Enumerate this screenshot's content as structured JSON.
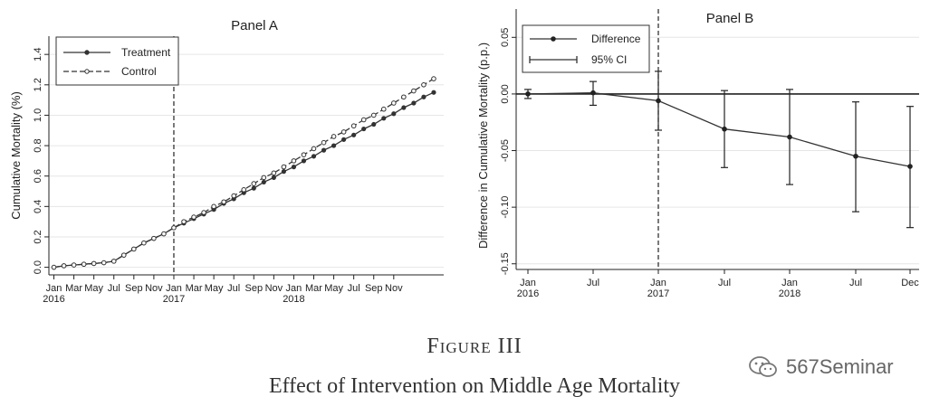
{
  "chart_data": [
    {
      "type": "line",
      "title": "Panel A",
      "ylabel": "Cumulative Mortality (%)",
      "xlabel": "",
      "ylim": [
        -0.05,
        1.52
      ],
      "yticks": [
        "0.0",
        "0.2",
        "0.4",
        "0.6",
        "0.8",
        "1.0",
        "1.2",
        "1.4"
      ],
      "x_tick_labels": [
        "Jan\n2016",
        "Mar",
        "May",
        "Jul",
        "Sep",
        "Nov",
        "Jan\n2017",
        "Mar",
        "May",
        "Jul",
        "Sep",
        "Nov",
        "Jan\n2018",
        "Mar",
        "May",
        "Jul",
        "Sep",
        "Nov"
      ],
      "vline_at_month": 12,
      "legend": {
        "position": "top-left",
        "entries": [
          "Treatment",
          "Control"
        ]
      },
      "series": [
        {
          "name": "Treatment",
          "style": "solid",
          "values": [
            0.0,
            0.01,
            0.015,
            0.02,
            0.025,
            0.03,
            0.04,
            0.08,
            0.12,
            0.16,
            0.19,
            0.22,
            0.26,
            0.29,
            0.32,
            0.35,
            0.38,
            0.42,
            0.45,
            0.49,
            0.52,
            0.56,
            0.59,
            0.63,
            0.66,
            0.7,
            0.73,
            0.77,
            0.8,
            0.84,
            0.87,
            0.91,
            0.94,
            0.98,
            1.01,
            1.05,
            1.08,
            1.12,
            1.15
          ]
        },
        {
          "name": "Control",
          "style": "dashed",
          "values": [
            0.0,
            0.01,
            0.015,
            0.02,
            0.025,
            0.03,
            0.04,
            0.08,
            0.12,
            0.16,
            0.19,
            0.22,
            0.26,
            0.3,
            0.33,
            0.36,
            0.4,
            0.43,
            0.47,
            0.51,
            0.55,
            0.59,
            0.62,
            0.66,
            0.7,
            0.74,
            0.78,
            0.82,
            0.86,
            0.89,
            0.93,
            0.97,
            1.0,
            1.04,
            1.08,
            1.12,
            1.16,
            1.2,
            1.24
          ]
        }
      ]
    },
    {
      "type": "line",
      "title": "Panel B",
      "ylabel": "Difference in Cumulative Mortality (p.p.)",
      "xlabel": "",
      "ylim": [
        -0.155,
        0.075
      ],
      "yticks": [
        "0.05",
        "0.00",
        "-0.05",
        "-0.10",
        "-0.15"
      ],
      "x_tick_labels": [
        "Jan\n2016",
        "Jul",
        "Jan\n2017",
        "Jul",
        "Jan\n2018",
        "Jul",
        "Dec"
      ],
      "vline_at_index": 2,
      "hline_at": 0,
      "legend": {
        "position": "top-left",
        "entries": [
          "Difference",
          "95% CI"
        ]
      },
      "series": [
        {
          "name": "Difference",
          "values": [
            0.0,
            0.001,
            -0.006,
            -0.031,
            -0.038,
            -0.055,
            -0.064
          ],
          "ci_low": [
            -0.004,
            -0.01,
            -0.032,
            -0.065,
            -0.08,
            -0.104,
            -0.118
          ],
          "ci_high": [
            0.004,
            0.011,
            0.02,
            0.003,
            0.004,
            -0.007,
            -0.011
          ]
        }
      ]
    }
  ],
  "figure_title": "Figure III",
  "figure_caption": "Effect of Intervention on Middle Age Mortality",
  "watermark": "567Seminar"
}
